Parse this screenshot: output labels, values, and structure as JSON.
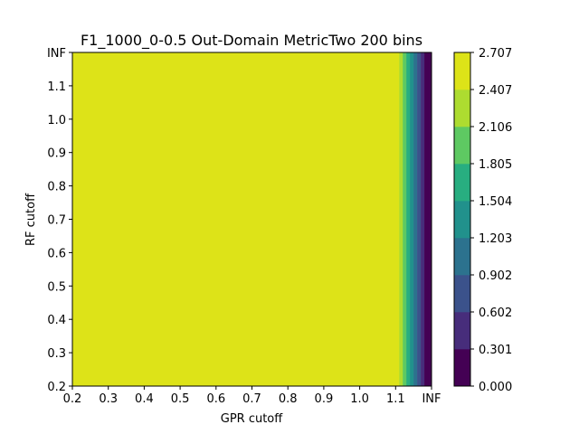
{
  "chart_data": {
    "type": "contour",
    "title": "F1_1000_0-0.5 Out-Domain MetricTwo 200 bins",
    "xlabel": "GPR cutoff",
    "ylabel": "RF cutoff",
    "x_ticks": [
      "0.2",
      "0.3",
      "0.4",
      "0.5",
      "0.6",
      "0.7",
      "0.8",
      "0.9",
      "1.0",
      "1.1",
      "INF"
    ],
    "y_ticks": [
      "0.2",
      "0.3",
      "0.4",
      "0.5",
      "0.6",
      "0.7",
      "0.8",
      "0.9",
      "1.0",
      "1.1",
      "INF"
    ],
    "x_range": [
      0.2,
      1.2
    ],
    "y_range": [
      0.2,
      1.2
    ],
    "colorbar": {
      "levels": [
        "0.000",
        "0.301",
        "0.602",
        "0.902",
        "1.203",
        "1.504",
        "1.805",
        "2.106",
        "2.407",
        "2.707"
      ],
      "colors": [
        "#440154",
        "#472d7b",
        "#3b528b",
        "#2c728e",
        "#21918c",
        "#28ae80",
        "#5ec962",
        "#addc30",
        "#dde318"
      ]
    },
    "field": {
      "description_of_values": "value constant across RF cutoff; depends on GPR cutoff only",
      "x_breakpoints": [
        0.2,
        1.11,
        1.12,
        1.13,
        1.14,
        1.15,
        1.16,
        1.17,
        1.18,
        1.2
      ],
      "band_level_index": [
        8,
        7,
        6,
        5,
        4,
        3,
        2,
        1,
        0
      ]
    }
  }
}
